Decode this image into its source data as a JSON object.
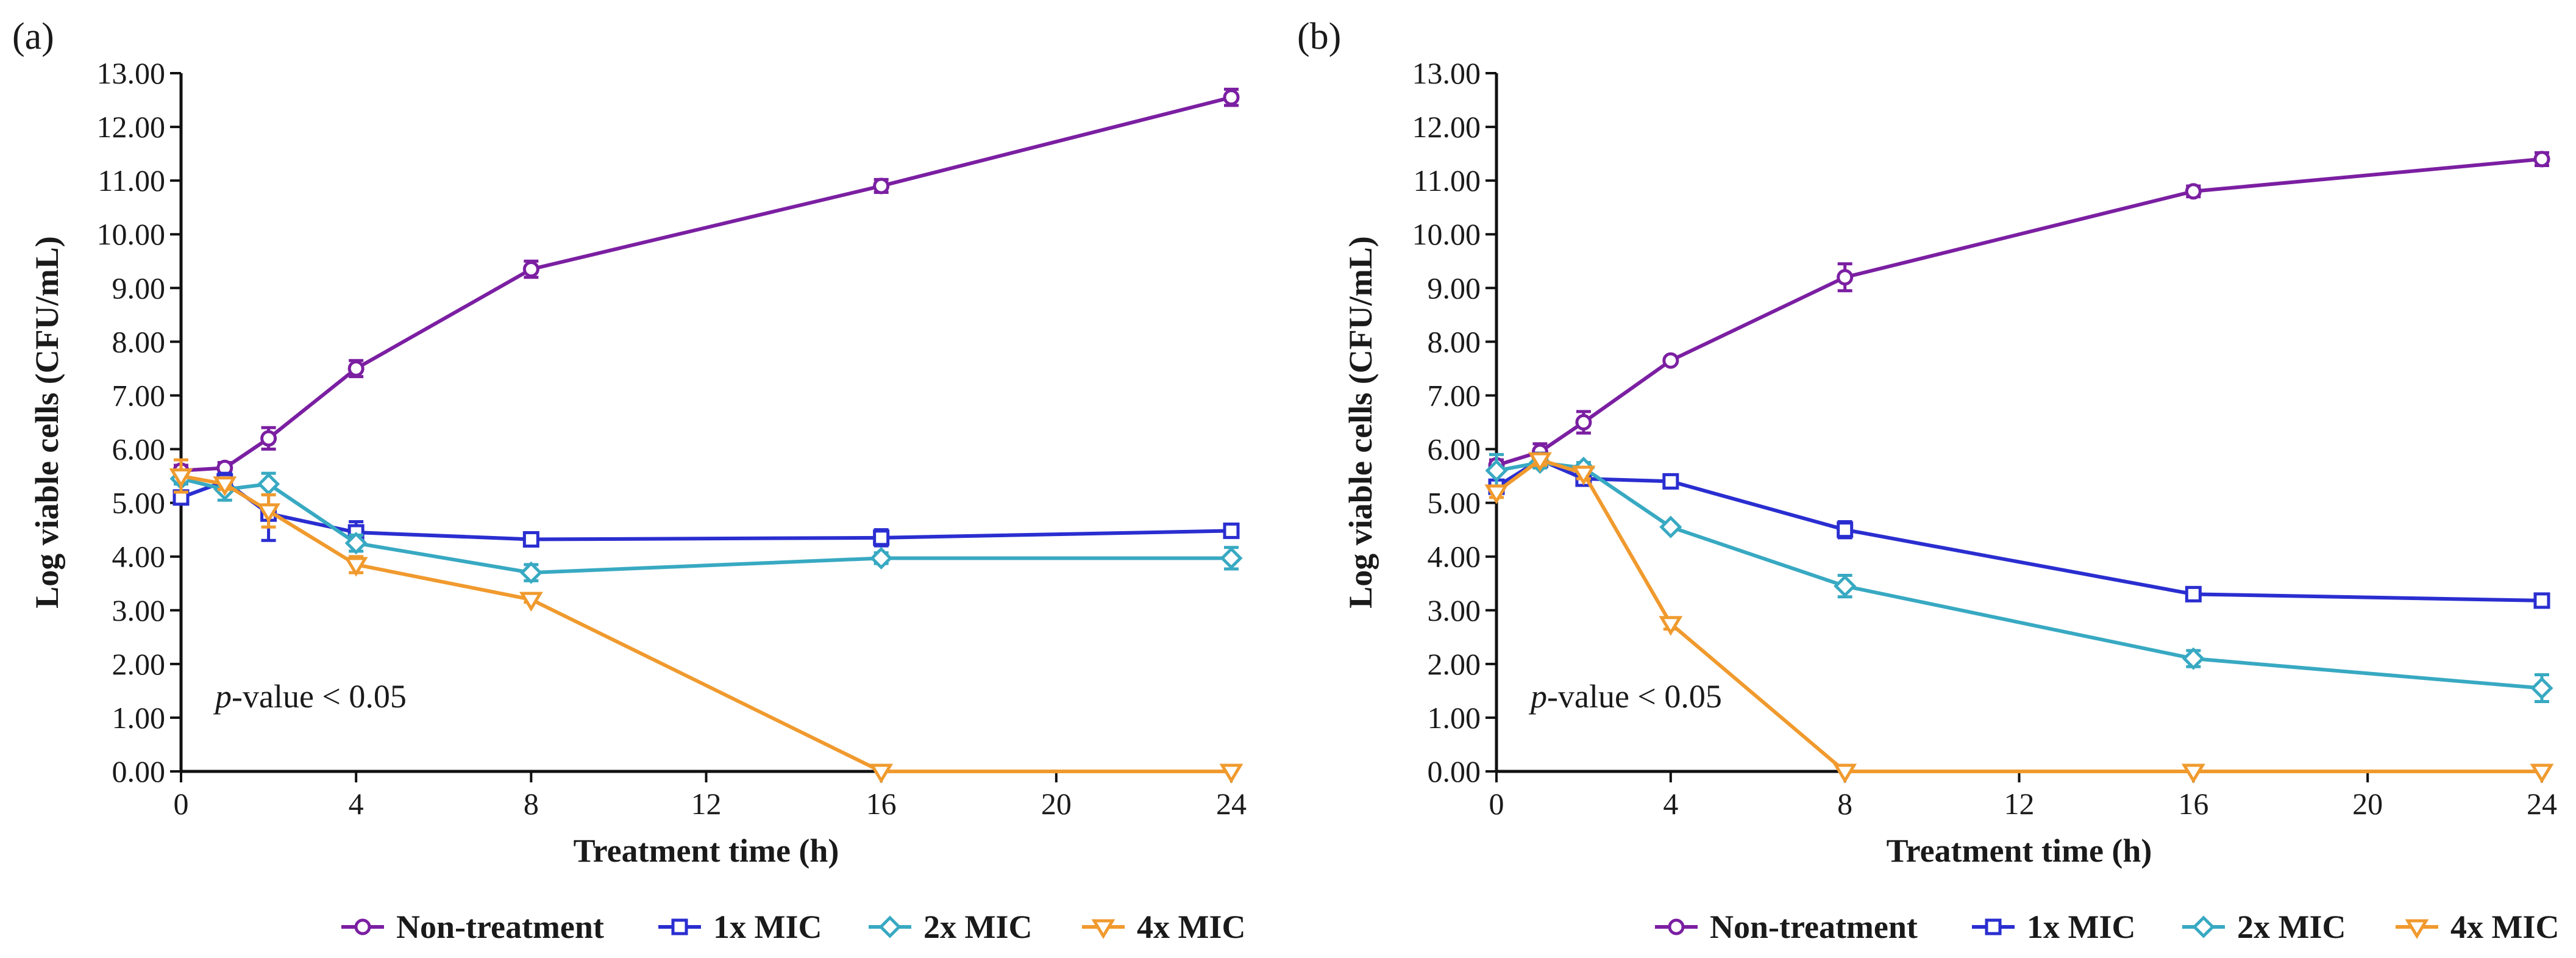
{
  "chart_data": [
    {
      "type": "line",
      "panel_label": "(a)",
      "xlabel": "Treatment time (h)",
      "ylabel": "Log viable cells (CFU/mL)",
      "xlim": [
        0,
        24
      ],
      "ylim": [
        0,
        13
      ],
      "xticks": [
        "0",
        "4",
        "8",
        "12",
        "16",
        "20",
        "24"
      ],
      "yticks": [
        "0.00",
        "1.00",
        "2.00",
        "3.00",
        "4.00",
        "5.00",
        "6.00",
        "7.00",
        "8.00",
        "9.00",
        "10.00",
        "11.00",
        "12.00",
        "13.00"
      ],
      "annotation": {
        "italic": "p",
        "rest": "-value < 0.05"
      },
      "x": [
        0,
        1,
        2,
        4,
        8,
        16,
        24
      ],
      "series": [
        {
          "name": "Non-treatment",
          "values": [
            5.6,
            5.65,
            6.2,
            7.5,
            9.35,
            10.9,
            12.55
          ],
          "errors": [
            0.1,
            0.1,
            0.2,
            0.15,
            0.15,
            0.12,
            0.15
          ]
        },
        {
          "name": "1x MIC",
          "values": [
            5.1,
            5.4,
            4.8,
            4.45,
            4.32,
            4.35,
            4.48
          ],
          "errors": [
            0.1,
            0.15,
            0.5,
            0.2,
            0.1,
            0.15,
            0.12
          ]
        },
        {
          "name": "2x MIC",
          "values": [
            5.45,
            5.25,
            5.35,
            4.25,
            3.7,
            3.97,
            3.97
          ],
          "errors": [
            0.1,
            0.2,
            0.2,
            0.15,
            0.15,
            0.1,
            0.2
          ]
        },
        {
          "name": "4x MIC",
          "values": [
            5.5,
            5.35,
            4.85,
            3.85,
            3.2,
            0.0,
            0.0
          ],
          "errors": [
            0.3,
            0.1,
            0.3,
            0.15,
            0.05,
            0,
            0
          ]
        }
      ]
    },
    {
      "type": "line",
      "panel_label": "(b)",
      "xlabel": "Treatment time (h)",
      "ylabel": "Log viable cells (CFU/mL)",
      "xlim": [
        0,
        24
      ],
      "ylim": [
        0,
        13
      ],
      "xticks": [
        "0",
        "4",
        "8",
        "12",
        "16",
        "20",
        "24"
      ],
      "yticks": [
        "0.00",
        "1.00",
        "2.00",
        "3.00",
        "4.00",
        "5.00",
        "6.00",
        "7.00",
        "8.00",
        "9.00",
        "10.00",
        "11.00",
        "12.00",
        "13.00"
      ],
      "annotation": {
        "italic": "p",
        "rest": "-value < 0.05"
      },
      "x": [
        0,
        1,
        2,
        4,
        8,
        16,
        24
      ],
      "series": [
        {
          "name": "Non-treatment",
          "values": [
            5.7,
            5.95,
            6.5,
            7.65,
            9.2,
            10.8,
            11.4
          ],
          "errors": [
            0.1,
            0.15,
            0.2,
            0.05,
            0.25,
            0.1,
            0.12
          ]
        },
        {
          "name": "1x MIC",
          "values": [
            5.3,
            5.8,
            5.45,
            5.4,
            4.5,
            3.3,
            3.18
          ],
          "errors": [
            0.1,
            0.1,
            0.05,
            0.05,
            0.15,
            0.05,
            0.12
          ]
        },
        {
          "name": "2x MIC",
          "values": [
            5.6,
            5.75,
            5.65,
            4.55,
            3.45,
            2.1,
            1.55
          ],
          "errors": [
            0.3,
            0.1,
            0.1,
            0.05,
            0.2,
            0.15,
            0.25
          ]
        },
        {
          "name": "4x MIC",
          "values": [
            5.2,
            5.8,
            5.55,
            2.75,
            0.0,
            0.0,
            0.0
          ],
          "errors": [
            0.1,
            0.1,
            0.1,
            0.1,
            0,
            0,
            0
          ]
        }
      ]
    }
  ],
  "legend": [
    "Non-treatment",
    "1x MIC",
    "2x MIC",
    "4x MIC"
  ],
  "colors": {
    "Non-treatment": "#7B1FA2",
    "1x MIC": "#2A2ED0",
    "2x MIC": "#38A9C2",
    "4x MIC": "#F09A2E"
  },
  "markers": {
    "Non-treatment": "circle",
    "1x MIC": "square",
    "2x MIC": "diamond",
    "4x MIC": "triangle-down"
  }
}
